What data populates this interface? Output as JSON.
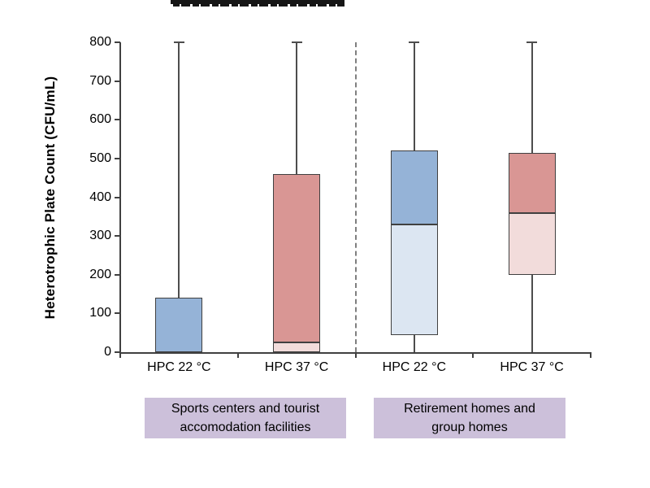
{
  "chart_data": {
    "type": "boxplot",
    "title": "",
    "xlabel": "",
    "ylabel": "Heterotrophic Plate Count (CFU/mL)",
    "ylim": [
      0,
      800
    ],
    "y_ticks": [
      0,
      100,
      200,
      300,
      400,
      500,
      600,
      700,
      800
    ],
    "grid": false,
    "legend_position": "none",
    "background": "#FFFFFF",
    "divider_between_groups": true,
    "categories": [
      "HPC 22 °C",
      "HPC 37 °C",
      "HPC 22 °C",
      "HPC 37 °C"
    ],
    "groups": [
      {
        "name": "Sports centers and tourist accomodation facilities",
        "name_lines": [
          "Sports centers and tourist",
          "accomodation facilities"
        ],
        "boxes": [
          {
            "category": "HPC 22 °C",
            "palette": "blue",
            "q1": 0,
            "median": 0,
            "q3": 140,
            "whisker_low": 0,
            "whisker_high": 800
          },
          {
            "category": "HPC 37 °C",
            "palette": "red",
            "q1": 0,
            "median": 25,
            "q3": 460,
            "whisker_low": 0,
            "whisker_high": 800
          }
        ]
      },
      {
        "name": "Retirement homes and group homes",
        "name_lines": [
          "Retirement homes and",
          "group homes"
        ],
        "boxes": [
          {
            "category": "HPC 22 °C",
            "palette": "blue",
            "q1": 45,
            "median": 330,
            "q3": 520,
            "whisker_low": 0,
            "whisker_high": 800
          },
          {
            "category": "HPC 37 °C",
            "palette": "red",
            "q1": 200,
            "median": 360,
            "q3": 515,
            "whisker_low": 0,
            "whisker_high": 800
          }
        ]
      }
    ],
    "colors": {
      "blue_upper": "#95B3D7",
      "blue_lower": "#DCE6F2",
      "red_upper": "#D99694",
      "red_lower": "#F2DCDB",
      "box_border": "#404040",
      "whisker": "#4D4D4D",
      "axis": "#404040",
      "divider": "#7F7F7F",
      "group_label_bg": "#CCC0DA",
      "text": "#000000"
    }
  }
}
